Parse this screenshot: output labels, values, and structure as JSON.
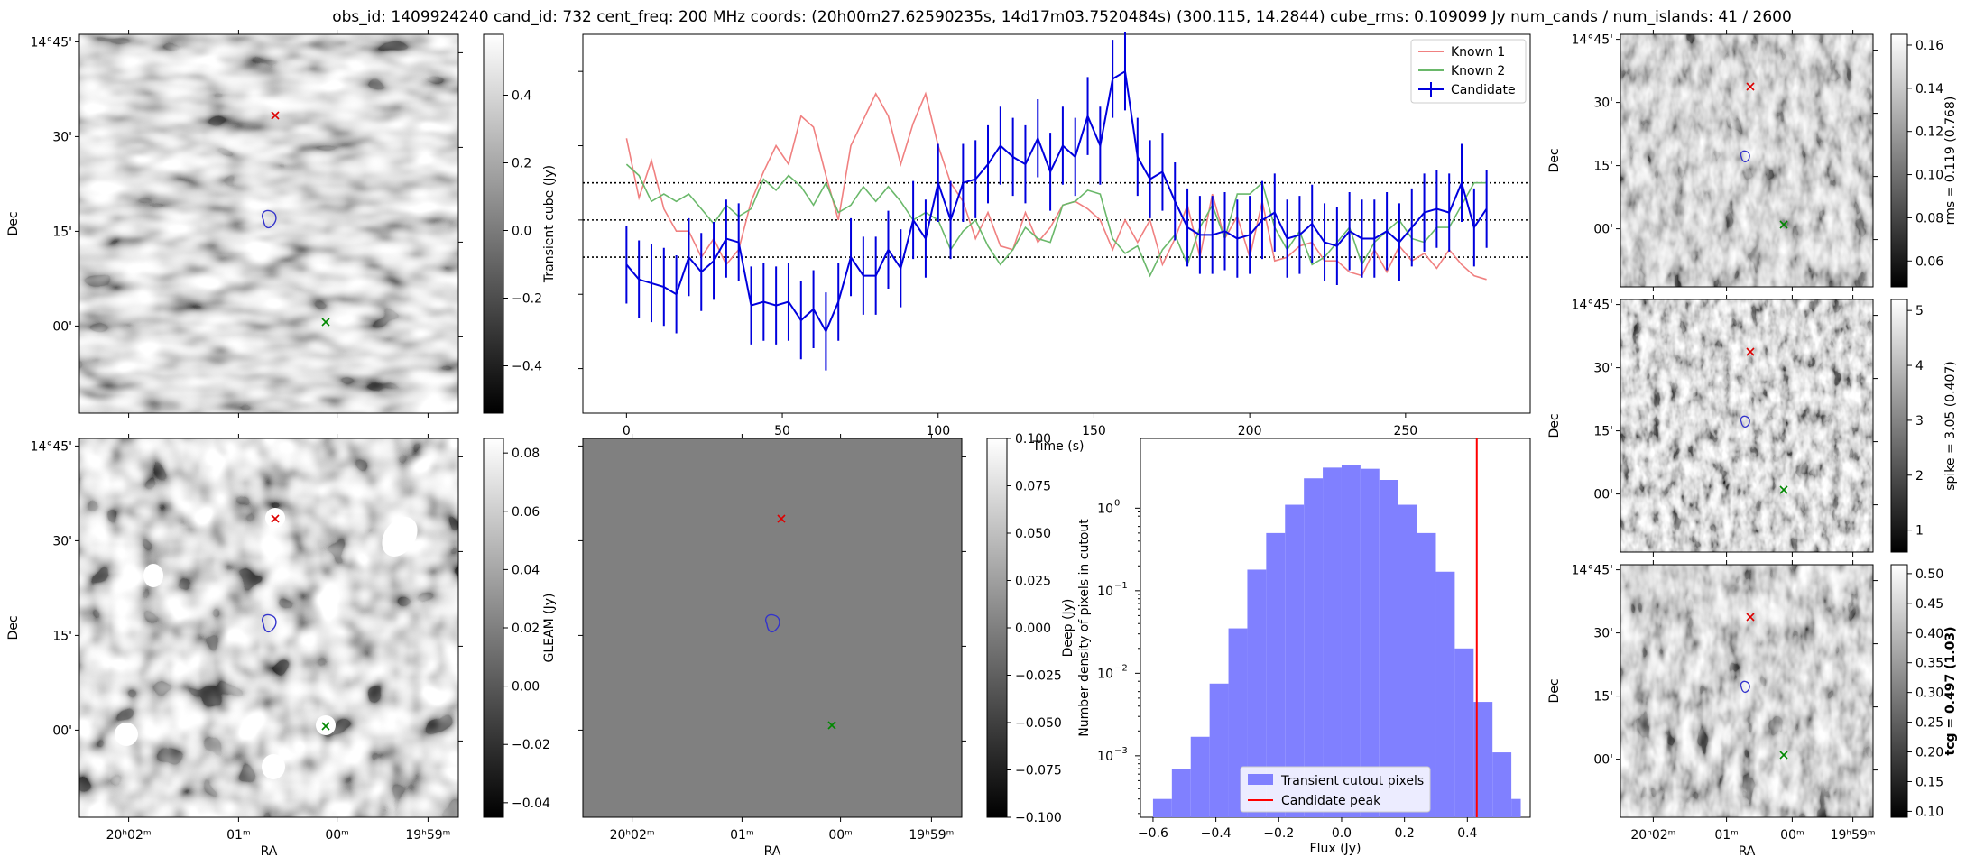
{
  "suptitle": "obs_id: 1409924240 cand_id: 732 cent_freq: 200 MHz coords: (20h00m27.62590235s, 14d17m03.7520484s) (300.115, 14.2844) cube_rms: 0.109099 Jy num_cands / num_islands: 41 / 2600",
  "colors": {
    "known1": "#f08080",
    "known2": "#6ab86a",
    "candidate": "#0000dd",
    "hist_fill": "#8080ff",
    "peak_line": "#ff0000",
    "marker_red": "#dd0000",
    "marker_green": "#008800",
    "contour": "#3333cc"
  },
  "sky_axes": {
    "ra_ticks": [
      "20ʰ02ᵐ",
      "01ᵐ",
      "00ᵐ",
      "19ʰ59ᵐ"
    ],
    "dec_ticks": [
      "14°45'",
      "30'",
      "15'",
      "00'"
    ],
    "xlabel": "RA",
    "ylabel": "Dec"
  },
  "panels": {
    "transient_cube": {
      "colorbar_label": "Transient cube (Jy)",
      "cbar_ticks": [
        "0.4",
        "0.2",
        "0.0",
        "−0.2",
        "−0.4"
      ],
      "cbar_range": [
        -0.54,
        0.58
      ],
      "tick_values": [
        0.4,
        0.2,
        0.0,
        -0.2,
        -0.4
      ]
    },
    "gleam": {
      "colorbar_label": "GLEAM (Jy)",
      "cbar_ticks": [
        "0.08",
        "0.06",
        "0.04",
        "0.02",
        "0.00",
        "−0.02",
        "−0.04"
      ],
      "cbar_range": [
        -0.045,
        0.085
      ],
      "tick_values": [
        0.08,
        0.06,
        0.04,
        0.02,
        0.0,
        -0.02,
        -0.04
      ]
    },
    "deep": {
      "colorbar_label": "Deep (Jy)",
      "cbar_ticks": [
        "0.100",
        "0.075",
        "0.050",
        "0.025",
        "0.000",
        "−0.025",
        "−0.050",
        "−0.075",
        "−0.100"
      ],
      "cbar_range": [
        -0.1,
        0.1
      ],
      "tick_values": [
        0.1,
        0.075,
        0.05,
        0.025,
        0.0,
        -0.025,
        -0.05,
        -0.075,
        -0.1
      ]
    },
    "rms": {
      "colorbar_label": "rms = 0.119 (0.768)",
      "cbar_ticks": [
        "0.16",
        "0.14",
        "0.12",
        "0.10",
        "0.08",
        "0.06"
      ],
      "cbar_range": [
        0.048,
        0.165
      ],
      "tick_values": [
        0.16,
        0.14,
        0.12,
        0.1,
        0.08,
        0.06
      ]
    },
    "spike": {
      "colorbar_label": "spike = 3.05 (0.407)",
      "cbar_ticks": [
        "5",
        "4",
        "3",
        "2",
        "1"
      ],
      "cbar_range": [
        0.6,
        5.2
      ],
      "tick_values": [
        5,
        4,
        3,
        2,
        1
      ]
    },
    "tcg": {
      "colorbar_label": "tcg = 0.497 (1.03)",
      "cbar_ticks": [
        "0.50",
        "0.45",
        "0.40",
        "0.35",
        "0.30",
        "0.25",
        "0.20",
        "0.15",
        "0.10"
      ],
      "cbar_range": [
        0.09,
        0.515
      ],
      "tick_values": [
        0.5,
        0.45,
        0.4,
        0.35,
        0.3,
        0.25,
        0.2,
        0.15,
        0.1
      ]
    }
  },
  "chart_data": [
    {
      "type": "line",
      "title": "",
      "xlabel": "Time (s)",
      "ylabel": "",
      "xlim": [
        -14,
        290
      ],
      "ylim": [
        -0.52,
        0.5
      ],
      "xticks": [
        0,
        50,
        100,
        150,
        200,
        250
      ],
      "hlines": [
        0.1,
        0.0,
        -0.1
      ],
      "legend": [
        "Known 1",
        "Known 2",
        "Candidate"
      ],
      "legend_loc": "upper right",
      "x": [
        0,
        4,
        8,
        12,
        16,
        20,
        24,
        28,
        32,
        36,
        40,
        44,
        48,
        52,
        56,
        60,
        64,
        68,
        72,
        76,
        80,
        84,
        88,
        92,
        96,
        100,
        104,
        108,
        112,
        116,
        120,
        124,
        128,
        132,
        136,
        140,
        144,
        148,
        152,
        156,
        160,
        164,
        168,
        172,
        176,
        180,
        184,
        188,
        192,
        196,
        200,
        204,
        208,
        212,
        216,
        220,
        224,
        228,
        232,
        236,
        240,
        244,
        248,
        252,
        256,
        260,
        264,
        268,
        272,
        276
      ],
      "series": [
        {
          "name": "Known 1",
          "values": [
            0.22,
            0.06,
            0.16,
            0.03,
            -0.03,
            -0.03,
            -0.1,
            -0.05,
            -0.12,
            -0.08,
            0.05,
            0.13,
            0.2,
            0.15,
            0.28,
            0.25,
            0.12,
            0.0,
            0.2,
            0.27,
            0.34,
            0.28,
            0.15,
            0.26,
            0.34,
            0.2,
            0.1,
            0.05,
            -0.05,
            0.02,
            -0.07,
            -0.08,
            0.02,
            -0.06,
            -0.02,
            0.04,
            0.05,
            0.03,
            0.0,
            -0.08,
            0.0,
            -0.06,
            0.0,
            -0.12,
            -0.05,
            0.04,
            -0.1,
            0.07,
            -0.05,
            0.01,
            -0.1,
            0.05,
            -0.11,
            -0.1,
            -0.07,
            -0.06,
            -0.11,
            -0.11,
            -0.14,
            -0.15,
            -0.08,
            -0.14,
            -0.07,
            -0.11,
            -0.09,
            -0.13,
            -0.08,
            -0.12,
            -0.15,
            -0.16
          ]
        },
        {
          "name": "Known 2",
          "values": [
            0.15,
            0.12,
            0.05,
            0.07,
            0.05,
            0.07,
            0.03,
            -0.01,
            0.04,
            0.01,
            0.03,
            0.11,
            0.08,
            0.12,
            0.09,
            0.04,
            0.1,
            0.02,
            0.04,
            0.09,
            0.05,
            0.09,
            0.05,
            0.0,
            0.02,
            0.0,
            -0.08,
            -0.03,
            0.0,
            -0.07,
            -0.12,
            -0.08,
            -0.02,
            -0.05,
            -0.06,
            0.04,
            0.05,
            0.08,
            0.07,
            -0.05,
            -0.09,
            -0.07,
            -0.15,
            -0.08,
            -0.04,
            -0.12,
            -0.02,
            0.04,
            -0.05,
            0.07,
            0.07,
            0.1,
            -0.02,
            -0.08,
            -0.03,
            -0.12,
            -0.1,
            -0.06,
            -0.02,
            -0.12,
            -0.06,
            -0.03,
            0.0,
            -0.05,
            -0.06,
            -0.02,
            -0.02,
            0.04,
            0.1,
            0.1
          ]
        },
        {
          "name": "Candidate",
          "values": [
            -0.12,
            -0.16,
            -0.17,
            -0.18,
            -0.2,
            -0.1,
            -0.14,
            -0.11,
            -0.05,
            -0.06,
            -0.23,
            -0.22,
            -0.23,
            -0.22,
            -0.27,
            -0.24,
            -0.3,
            -0.22,
            -0.1,
            -0.15,
            -0.15,
            -0.08,
            -0.13,
            0.0,
            -0.05,
            0.1,
            0.0,
            0.1,
            0.11,
            0.15,
            0.2,
            0.17,
            0.15,
            0.22,
            0.13,
            0.2,
            0.17,
            0.28,
            0.2,
            0.38,
            0.4,
            0.17,
            0.11,
            0.13,
            0.05,
            -0.02,
            -0.04,
            -0.04,
            -0.03,
            -0.05,
            -0.04,
            0.0,
            0.02,
            -0.05,
            -0.04,
            -0.01,
            -0.06,
            -0.07,
            -0.03,
            -0.05,
            -0.05,
            -0.03,
            -0.06,
            -0.02,
            0.02,
            0.03,
            0.02,
            0.1,
            -0.02,
            0.03
          ]
        }
      ],
      "errorbar": 0.105
    },
    {
      "type": "bar",
      "title": "",
      "xlabel": "Flux (Jy)",
      "ylabel": "Number density of pixels in cutout",
      "yscale": "log",
      "xlim": [
        -0.64,
        0.6
      ],
      "ylim": [
        0.00018,
        7
      ],
      "xticks": [
        -0.6,
        -0.4,
        -0.2,
        0.0,
        0.2,
        0.4
      ],
      "xtick_labels": [
        "−0.6",
        "−0.4",
        "−0.2",
        "0.0",
        "0.2",
        "0.4"
      ],
      "ytick_exps": [
        0,
        -1,
        -2,
        -3
      ],
      "bin_edges": [
        -0.6,
        -0.54,
        -0.48,
        -0.42,
        -0.36,
        -0.3,
        -0.24,
        -0.18,
        -0.12,
        -0.06,
        0.0,
        0.06,
        0.12,
        0.18,
        0.24,
        0.3,
        0.36,
        0.42,
        0.48,
        0.54,
        0.57
      ],
      "values": [
        0.0003,
        0.0007,
        0.0017,
        0.0075,
        0.035,
        0.18,
        0.5,
        1.1,
        2.3,
        3.1,
        3.3,
        3.0,
        2.2,
        1.1,
        0.5,
        0.17,
        0.02,
        0.0045,
        0.0011,
        0.0003
      ],
      "peak": 0.43,
      "legend": [
        "Transient cutout pixels",
        "Candidate peak"
      ],
      "legend_loc": "lower center"
    }
  ]
}
